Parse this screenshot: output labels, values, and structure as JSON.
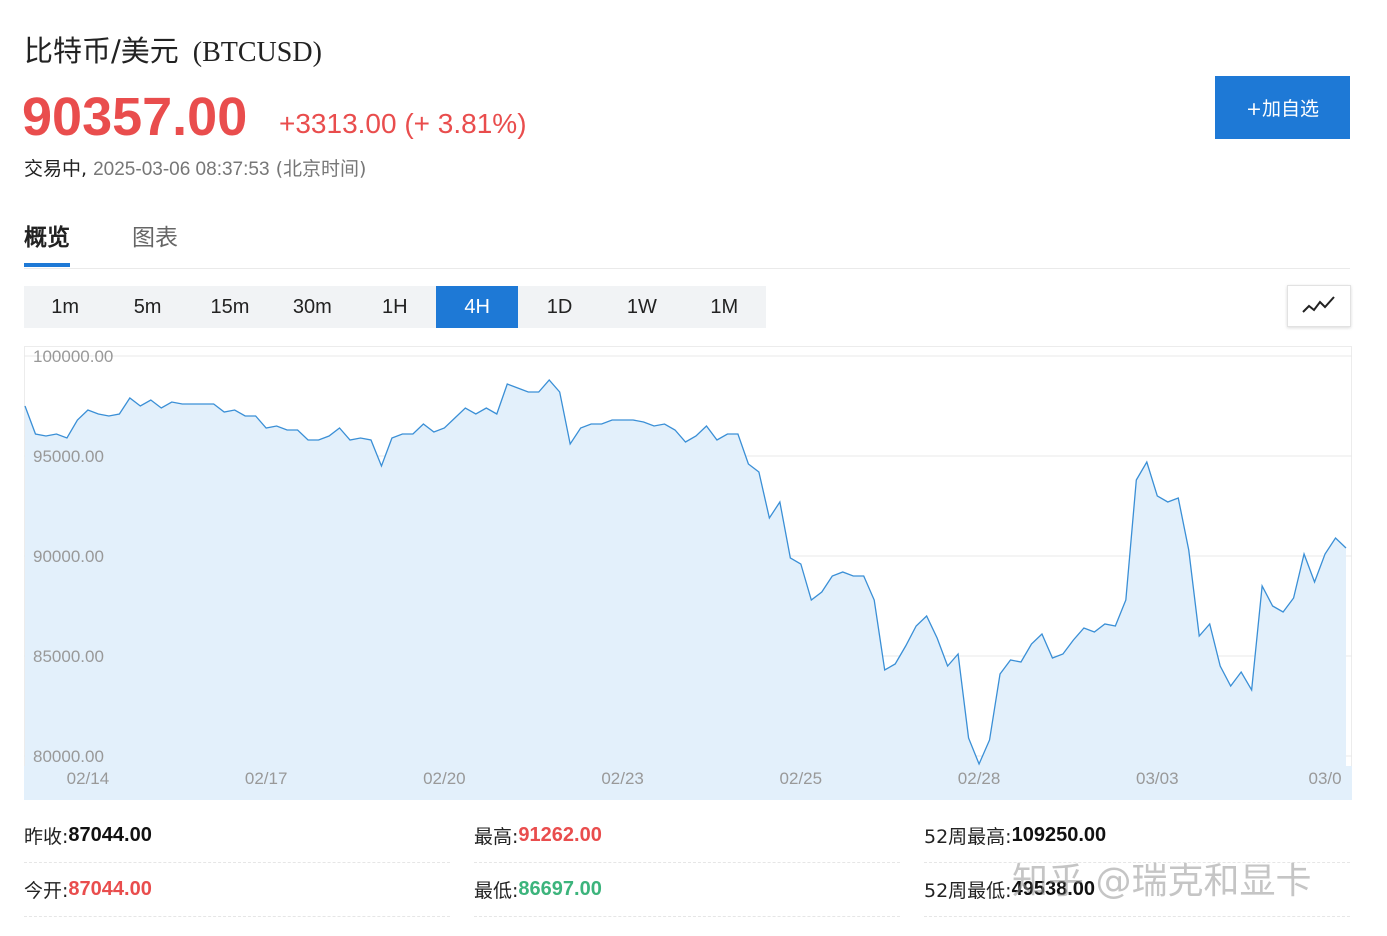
{
  "header": {
    "title": "比特币/美元",
    "symbol": "(BTCUSD)",
    "price": "90357.00",
    "change": "+3313.00 (+ 3.81%)",
    "status": "交易中,",
    "timestamp": "2025-03-06 08:37:53",
    "timezone": "(北京时间)",
    "add_watchlist": "+加自选"
  },
  "tabs": [
    {
      "label": "概览",
      "active": true
    },
    {
      "label": "图表",
      "active": false
    }
  ],
  "periods": [
    {
      "label": "1m",
      "active": false
    },
    {
      "label": "5m",
      "active": false
    },
    {
      "label": "15m",
      "active": false
    },
    {
      "label": "30m",
      "active": false
    },
    {
      "label": "1H",
      "active": false
    },
    {
      "label": "4H",
      "active": true
    },
    {
      "label": "1D",
      "active": false
    },
    {
      "label": "1W",
      "active": false
    },
    {
      "label": "1M",
      "active": false
    }
  ],
  "icons": {
    "chart_toggle": "line-chart-icon"
  },
  "colors": {
    "up": "#e94d4d",
    "down": "#3cb47c",
    "accent": "#1e79d6",
    "line": "#3a8fd6",
    "fill": "#e3f0fb"
  },
  "chart_data": {
    "type": "area",
    "title": "",
    "xlabel": "",
    "ylabel": "",
    "ylim": [
      79500,
      100500
    ],
    "yticks": [
      "100000.00",
      "95000.00",
      "90000.00",
      "85000.00",
      "80000.00"
    ],
    "ytick_values": [
      100000,
      95000,
      90000,
      85000,
      80000
    ],
    "xticks": [
      "02/14",
      "02/17",
      "02/20",
      "02/23",
      "02/25",
      "02/28",
      "03/03",
      "03/0"
    ],
    "xtick_index": [
      6,
      23,
      40,
      57,
      74,
      91,
      108,
      124
    ],
    "grid": true,
    "values": [
      97500,
      96100,
      96000,
      96100,
      95900,
      96800,
      97300,
      97100,
      97000,
      97100,
      97900,
      97500,
      97800,
      97400,
      97700,
      97600,
      97600,
      97600,
      97600,
      97200,
      97300,
      97000,
      97000,
      96400,
      96500,
      96300,
      96300,
      95800,
      95800,
      96000,
      96400,
      95800,
      95900,
      95800,
      94500,
      95900,
      96100,
      96100,
      96600,
      96200,
      96400,
      96900,
      97400,
      97100,
      97400,
      97100,
      98600,
      98400,
      98200,
      98200,
      98800,
      98200,
      95600,
      96400,
      96600,
      96600,
      96800,
      96800,
      96800,
      96700,
      96500,
      96600,
      96300,
      95700,
      96000,
      96500,
      95800,
      96100,
      96100,
      94600,
      94200,
      91900,
      92700,
      89900,
      89600,
      87800,
      88200,
      89000,
      89200,
      89000,
      89000,
      87800,
      84300,
      84600,
      85500,
      86500,
      87000,
      85900,
      84500,
      85100,
      80900,
      79600,
      80800,
      84100,
      84800,
      84700,
      85600,
      86100,
      84900,
      85100,
      85800,
      86400,
      86200,
      86600,
      86500,
      87800,
      93800,
      94700,
      93000,
      92700,
      92900,
      90300,
      86000,
      86600,
      84500,
      83500,
      84200,
      83300,
      88500,
      87500,
      87200,
      87900,
      90100,
      88700,
      90100,
      90900,
      90400
    ],
    "close": 90357.0
  },
  "stats": {
    "prev_close_label": "昨收:",
    "prev_close": "87044.00",
    "open_label": "今开:",
    "open": "87044.00",
    "high_label": "最高:",
    "high": "91262.00",
    "low_label": "最低:",
    "low": "86697.00",
    "wk52_high_label": "52周最高:",
    "wk52_high": "109250.00",
    "wk52_low_label": "52周最低:",
    "wk52_low": "49538.00"
  },
  "watermark": "知乎 @瑞克和显卡"
}
